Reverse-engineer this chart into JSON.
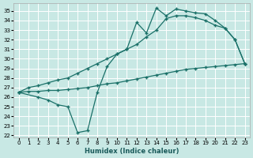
{
  "xlabel": "Humidex (Indice chaleur)",
  "bg_color": "#c8e8e4",
  "grid_color": "#ffffff",
  "line_color": "#1a7068",
  "xlim": [
    -0.5,
    23.5
  ],
  "ylim": [
    21.8,
    35.8
  ],
  "xticks": [
    0,
    1,
    2,
    3,
    4,
    5,
    6,
    7,
    8,
    9,
    10,
    11,
    12,
    13,
    14,
    15,
    16,
    17,
    18,
    19,
    20,
    21,
    22,
    23
  ],
  "yticks": [
    22,
    23,
    24,
    25,
    26,
    27,
    28,
    29,
    30,
    31,
    32,
    33,
    34,
    35
  ],
  "curve_jagged_x": [
    0,
    2,
    3,
    4,
    5,
    6,
    7,
    8,
    9,
    10,
    11,
    12,
    13,
    14,
    15,
    16,
    17,
    18,
    19,
    20,
    21,
    22,
    23
  ],
  "curve_jagged_y": [
    26.5,
    26.0,
    25.7,
    25.2,
    25.0,
    22.3,
    22.5,
    26.5,
    29.2,
    30.5,
    31.0,
    33.8,
    32.7,
    35.3,
    34.5,
    35.2,
    35.0,
    34.8,
    34.7,
    34.0,
    33.2,
    32.0,
    29.5
  ],
  "curve_smooth_x": [
    0,
    1,
    2,
    3,
    4,
    5,
    6,
    7,
    8,
    9,
    10,
    11,
    12,
    13,
    14,
    15,
    16,
    17,
    18,
    19,
    20,
    21,
    22,
    23
  ],
  "curve_smooth_y": [
    26.5,
    27.0,
    27.2,
    27.5,
    27.8,
    28.0,
    28.5,
    29.0,
    29.5,
    30.0,
    30.5,
    31.0,
    31.5,
    32.3,
    33.0,
    34.2,
    34.5,
    34.5,
    34.3,
    34.0,
    33.5,
    33.2,
    32.0,
    29.5
  ],
  "curve_linear_x": [
    0,
    1,
    2,
    3,
    4,
    5,
    6,
    7,
    8,
    9,
    10,
    11,
    12,
    13,
    14,
    15,
    16,
    17,
    18,
    19,
    20,
    21,
    22,
    23
  ],
  "curve_linear_y": [
    26.5,
    26.6,
    26.6,
    26.7,
    26.7,
    26.8,
    26.9,
    27.0,
    27.2,
    27.4,
    27.5,
    27.7,
    27.9,
    28.1,
    28.3,
    28.5,
    28.7,
    28.9,
    29.0,
    29.1,
    29.2,
    29.3,
    29.4,
    29.5
  ]
}
